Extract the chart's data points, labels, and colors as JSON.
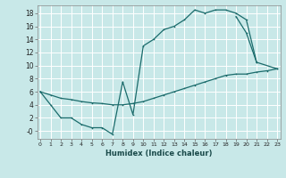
{
  "xlabel": "Humidex (Indice chaleur)",
  "bg_color": "#c8e8e8",
  "grid_color": "#ffffff",
  "line_color": "#1a6b6b",
  "line1_x": [
    0,
    1,
    2,
    3,
    4,
    5,
    6,
    7,
    8,
    9,
    10,
    11,
    12,
    13,
    14,
    15,
    16,
    17,
    18,
    19,
    20,
    21
  ],
  "line1_y": [
    6,
    4,
    2,
    2,
    1,
    0.5,
    0.5,
    -0.5,
    7.5,
    2.5,
    13,
    14,
    15.5,
    16,
    17,
    18.5,
    18,
    18.5,
    18.5,
    18,
    17,
    10.5
  ],
  "line2_x": [
    0,
    1,
    2,
    3,
    4,
    5,
    6,
    7,
    8,
    9,
    10,
    11,
    12,
    13,
    14,
    15,
    16,
    17,
    18,
    19,
    20,
    21,
    22,
    23
  ],
  "line2_y": [
    6,
    5.5,
    5.0,
    4.8,
    4.5,
    4.3,
    4.2,
    4.0,
    4.0,
    4.2,
    4.5,
    5.0,
    5.5,
    6.0,
    6.5,
    7.0,
    7.5,
    8.0,
    8.5,
    8.7,
    8.7,
    9.0,
    9.2,
    9.5
  ],
  "line3_x": [
    19,
    20,
    21,
    23
  ],
  "line3_y": [
    17.5,
    15,
    10.5,
    9.5
  ],
  "xlim": [
    -0.3,
    23.3
  ],
  "ylim": [
    -1.2,
    19.2
  ],
  "xticks": [
    0,
    1,
    2,
    3,
    4,
    5,
    6,
    7,
    8,
    9,
    10,
    11,
    12,
    13,
    14,
    15,
    16,
    17,
    18,
    19,
    20,
    21,
    22,
    23
  ],
  "yticks": [
    0,
    2,
    4,
    6,
    8,
    10,
    12,
    14,
    16,
    18
  ],
  "ytick_labels": [
    "-0",
    "2",
    "4",
    "6",
    "8",
    "10",
    "12",
    "14",
    "16",
    "18"
  ]
}
